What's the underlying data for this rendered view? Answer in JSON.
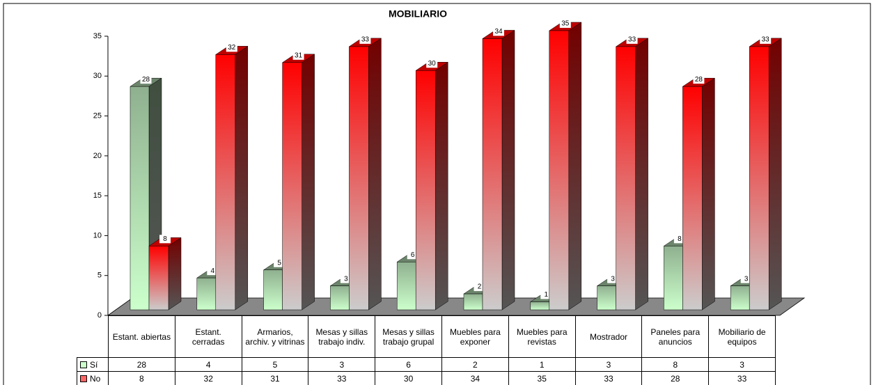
{
  "chart_data": {
    "type": "bar3d",
    "title": "MOBILIARIO",
    "categories": [
      "Estant. abiertas",
      "Estant. cerradas",
      "Armarios, archiv. y vitrinas",
      "Mesas y sillas trabajo indiv.",
      "Mesas y sillas trabajo grupal",
      "Muebles para exponer",
      "Muebles para revistas",
      "Mostrador",
      "Paneles para anuncios",
      "Mobiliario de equipos"
    ],
    "series": [
      {
        "name": "Sí",
        "color": "#8fb08f",
        "values": [
          28,
          4,
          5,
          3,
          6,
          2,
          1,
          3,
          8,
          3
        ]
      },
      {
        "name": "No",
        "color": "#ff0000",
        "values": [
          8,
          32,
          31,
          33,
          30,
          34,
          35,
          33,
          28,
          33
        ]
      }
    ],
    "ylim": [
      0,
      35
    ],
    "yticks": [
      0,
      5,
      10,
      15,
      20,
      25,
      30,
      35
    ]
  }
}
